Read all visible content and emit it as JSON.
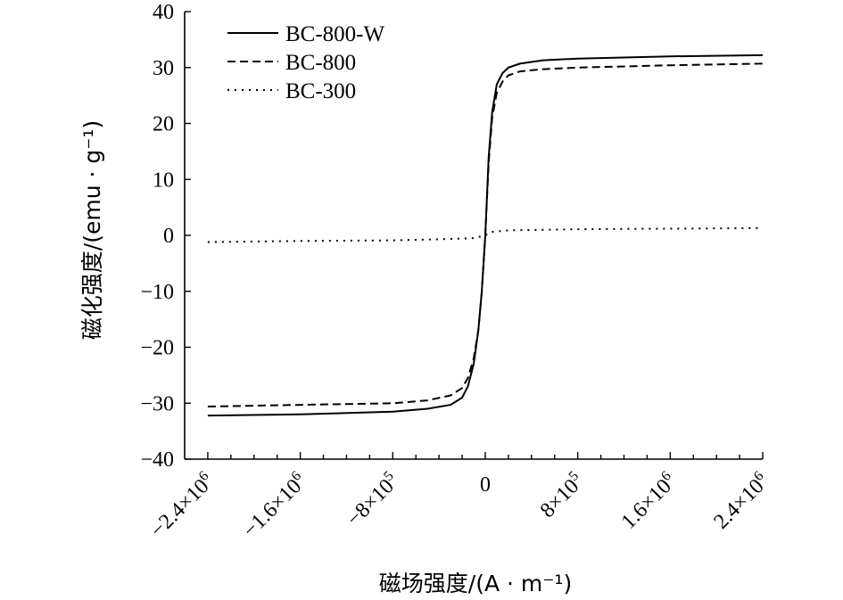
{
  "chart_data": {
    "type": "line",
    "title": "",
    "xlabel": "磁场强度/(A · m⁻¹)",
    "ylabel": "磁化强度/(emu · g⁻¹)",
    "xlim": [
      -2600000,
      2400000
    ],
    "ylim": [
      -40,
      40
    ],
    "y_ticks": [
      40,
      30,
      20,
      10,
      0,
      -10,
      -20,
      -30,
      -40
    ],
    "y_tick_labels": [
      "40",
      "30",
      "20",
      "10",
      "0",
      "−10",
      "−20",
      "−30",
      "−40"
    ],
    "x_ticks": [
      -2400000,
      -1600000,
      -800000,
      0,
      800000,
      1600000,
      2400000
    ],
    "x_tick_labels": [
      {
        "mantissa": "−2.4×10",
        "exp": "6"
      },
      {
        "mantissa": "−1.6×10",
        "exp": "6"
      },
      {
        "mantissa": "−8×10",
        "exp": "5"
      },
      {
        "mantissa": "0",
        "exp": ""
      },
      {
        "mantissa": "8×10",
        "exp": "5"
      },
      {
        "mantissa": "1.6×10",
        "exp": "6"
      },
      {
        "mantissa": "2.4×10",
        "exp": "6"
      }
    ],
    "legend_position": "top-left",
    "series": [
      {
        "name": "BC-800-W",
        "dash": "solid",
        "points": [
          [
            -2400000,
            -32.2
          ],
          [
            -1600000,
            -32.0
          ],
          [
            -800000,
            -31.5
          ],
          [
            -500000,
            -31.0
          ],
          [
            -300000,
            -30.3
          ],
          [
            -200000,
            -29.0
          ],
          [
            -150000,
            -27.0
          ],
          [
            -100000,
            -23.0
          ],
          [
            -60000,
            -17.0
          ],
          [
            -30000,
            -10.0
          ],
          [
            0,
            0
          ],
          [
            30000,
            14.0
          ],
          [
            60000,
            22.0
          ],
          [
            100000,
            27.0
          ],
          [
            150000,
            29.0
          ],
          [
            200000,
            30.0
          ],
          [
            300000,
            30.7
          ],
          [
            500000,
            31.3
          ],
          [
            800000,
            31.6
          ],
          [
            1600000,
            32.0
          ],
          [
            2400000,
            32.2
          ]
        ]
      },
      {
        "name": "BC-800",
        "dash": "dashed",
        "points": [
          [
            -2400000,
            -30.6
          ],
          [
            -1600000,
            -30.3
          ],
          [
            -800000,
            -30.0
          ],
          [
            -500000,
            -29.5
          ],
          [
            -300000,
            -28.6
          ],
          [
            -200000,
            -27.3
          ],
          [
            -150000,
            -25.5
          ],
          [
            -100000,
            -22.0
          ],
          [
            -60000,
            -17.0
          ],
          [
            -30000,
            -10.0
          ],
          [
            0,
            0
          ],
          [
            30000,
            13.0
          ],
          [
            60000,
            21.0
          ],
          [
            100000,
            25.5
          ],
          [
            150000,
            27.5
          ],
          [
            200000,
            28.6
          ],
          [
            300000,
            29.3
          ],
          [
            500000,
            29.7
          ],
          [
            800000,
            30.0
          ],
          [
            1600000,
            30.4
          ],
          [
            2400000,
            30.7
          ]
        ]
      },
      {
        "name": "BC-300",
        "dash": "dotted",
        "points": [
          [
            -2400000,
            -1.2
          ],
          [
            -1600000,
            -1.0
          ],
          [
            -800000,
            -0.9
          ],
          [
            -400000,
            -0.7
          ],
          [
            -100000,
            -0.5
          ],
          [
            0,
            0
          ],
          [
            50000,
            0.6
          ],
          [
            200000,
            0.9
          ],
          [
            500000,
            1.0
          ],
          [
            800000,
            1.1
          ],
          [
            1600000,
            1.2
          ],
          [
            2400000,
            1.3
          ]
        ]
      }
    ]
  }
}
